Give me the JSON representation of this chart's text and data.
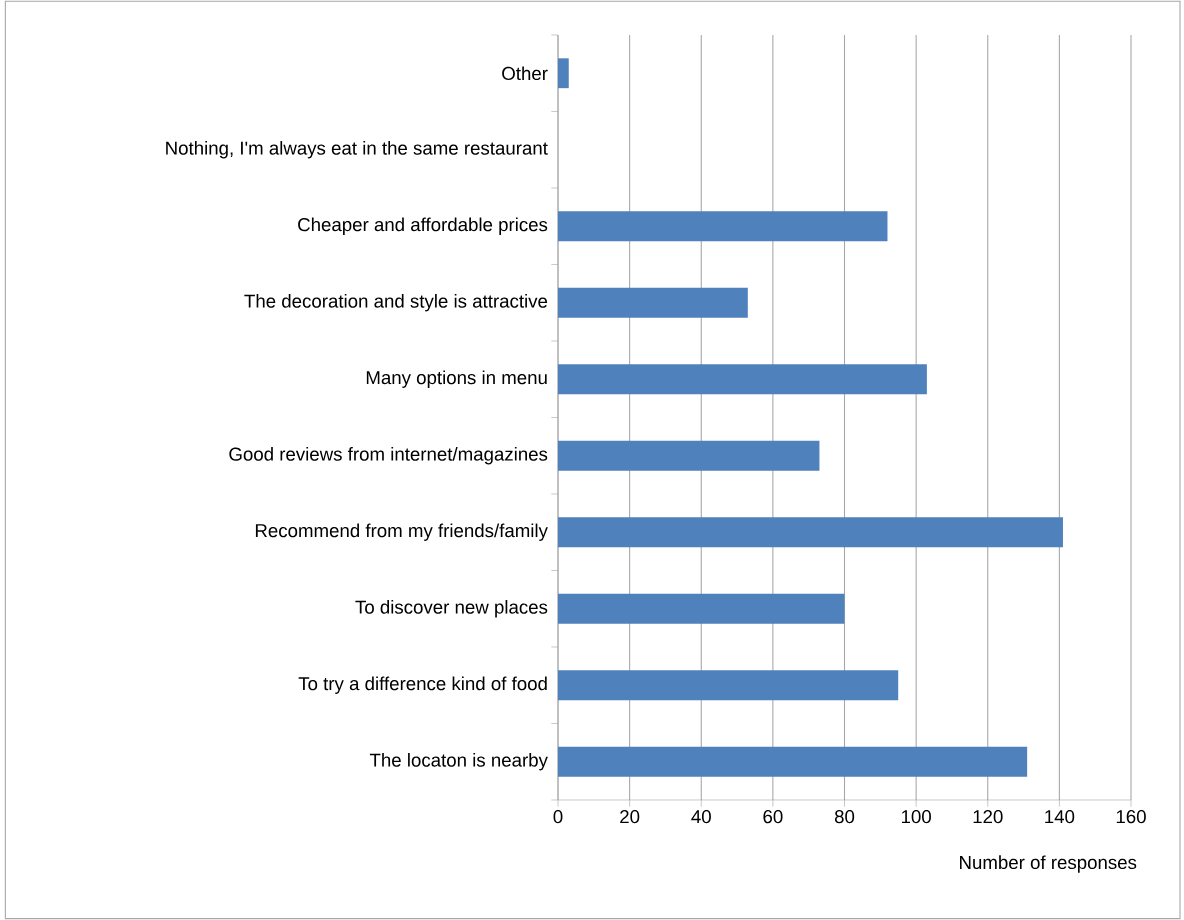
{
  "chart_data": {
    "type": "bar",
    "orientation": "horizontal",
    "categories": [
      "Other",
      "Nothing, I'm always eat in the same restaurant",
      "Cheaper and affordable prices",
      "The decoration and style is attractive",
      "Many options in menu",
      "Good reviews from internet/magazines",
      "Recommend from my friends/family",
      "To discover new places",
      "To try a difference kind of food",
      "The locaton is nearby"
    ],
    "values": [
      3,
      0,
      92,
      53,
      103,
      73,
      141,
      80,
      95,
      131
    ],
    "color": "#4f81bd",
    "xlim": [
      0,
      160
    ],
    "xticks": [
      0,
      20,
      40,
      60,
      80,
      100,
      120,
      140,
      160
    ],
    "xlabel": "Number of responses",
    "grid": "x"
  }
}
